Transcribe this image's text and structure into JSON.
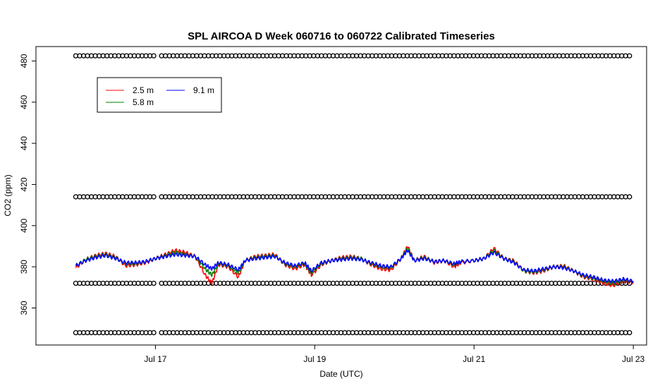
{
  "chart_data": {
    "type": "line",
    "title": "SPL AIRCOA D  Week 060716 to 060722  Calibrated Timeseries",
    "xlabel": "Date (UTC)",
    "ylabel": "CO2 (ppm)",
    "xlim": [
      "2006-07-15 12:00",
      "2006-07-23 04:00"
    ],
    "ylim": [
      342,
      487
    ],
    "x_ticks": [
      {
        "date": "2006-07-17",
        "label": "Jul 17"
      },
      {
        "date": "2006-07-19",
        "label": "Jul 19"
      },
      {
        "date": "2006-07-21",
        "label": "Jul 21"
      },
      {
        "date": "2006-07-23",
        "label": "Jul 23"
      }
    ],
    "y_ticks": [
      360,
      380,
      400,
      420,
      440,
      460,
      480
    ],
    "grid": false,
    "legend": {
      "placement": "top-left",
      "entries": [
        {
          "label": "2.5 m",
          "color": "#ff0000"
        },
        {
          "label": "5.8 m",
          "color": "#008000"
        },
        {
          "label": "9.1 m",
          "color": "#0000ff"
        }
      ]
    },
    "series": [
      {
        "name": "2.5 m",
        "color": "#ff0000",
        "points": [
          [
            "2006-07-16 00:00",
            379.5
          ],
          [
            "2006-07-16 03:00",
            383.5
          ],
          [
            "2006-07-16 06:00",
            385.5
          ],
          [
            "2006-07-16 09:00",
            386.5
          ],
          [
            "2006-07-16 12:00",
            385
          ],
          [
            "2006-07-16 15:00",
            380.5
          ],
          [
            "2006-07-16 18:00",
            381
          ],
          [
            "2006-07-16 21:00",
            382
          ],
          [
            "2006-07-17 00:00",
            384
          ],
          [
            "2006-07-17 03:00",
            386
          ],
          [
            "2006-07-17 06:00",
            388
          ],
          [
            "2006-07-17 09:00",
            387
          ],
          [
            "2006-07-17 12:00",
            385
          ],
          [
            "2006-07-17 15:00",
            376
          ],
          [
            "2006-07-17 17:00",
            372
          ],
          [
            "2006-07-17 19:00",
            381
          ],
          [
            "2006-07-17 22:00",
            380
          ],
          [
            "2006-07-18 01:00",
            375
          ],
          [
            "2006-07-18 03:00",
            383
          ],
          [
            "2006-07-18 06:00",
            385
          ],
          [
            "2006-07-18 09:00",
            385.5
          ],
          [
            "2006-07-18 12:00",
            386
          ],
          [
            "2006-07-18 15:00",
            381
          ],
          [
            "2006-07-18 18:00",
            379
          ],
          [
            "2006-07-18 21:00",
            381
          ],
          [
            "2006-07-18 23:00",
            376
          ],
          [
            "2006-07-19 02:00",
            381
          ],
          [
            "2006-07-19 05:00",
            383
          ],
          [
            "2006-07-19 08:00",
            384.5
          ],
          [
            "2006-07-19 11:00",
            385
          ],
          [
            "2006-07-19 14:00",
            384
          ],
          [
            "2006-07-19 17:00",
            381
          ],
          [
            "2006-07-19 20:00",
            379
          ],
          [
            "2006-07-19 23:00",
            378.5
          ],
          [
            "2006-07-20 02:00",
            384
          ],
          [
            "2006-07-20 04:00",
            390
          ],
          [
            "2006-07-20 06:00",
            383
          ],
          [
            "2006-07-20 09:00",
            385
          ],
          [
            "2006-07-20 12:00",
            382
          ],
          [
            "2006-07-20 15:00",
            383
          ],
          [
            "2006-07-20 18:00",
            380
          ],
          [
            "2006-07-20 20:00",
            382
          ],
          [
            "2006-07-21 00:00",
            383
          ],
          [
            "2006-07-21 03:00",
            384
          ],
          [
            "2006-07-21 06:00",
            389
          ],
          [
            "2006-07-21 09:00",
            384
          ],
          [
            "2006-07-21 12:00",
            383
          ],
          [
            "2006-07-21 15:00",
            378
          ],
          [
            "2006-07-21 18:00",
            377
          ],
          [
            "2006-07-21 21:00",
            378
          ],
          [
            "2006-07-22 00:00",
            380
          ],
          [
            "2006-07-22 03:00",
            380.5
          ],
          [
            "2006-07-22 06:00",
            378
          ],
          [
            "2006-07-22 09:00",
            375
          ],
          [
            "2006-07-22 12:00",
            374
          ],
          [
            "2006-07-22 15:00",
            372
          ],
          [
            "2006-07-22 18:00",
            371
          ],
          [
            "2006-07-22 21:00",
            373
          ],
          [
            "2006-07-23 00:00",
            372.5
          ]
        ]
      },
      {
        "name": "5.8 m",
        "color": "#008000",
        "points": [
          [
            "2006-07-16 00:00",
            380.5
          ],
          [
            "2006-07-16 03:00",
            383.5
          ],
          [
            "2006-07-16 06:00",
            385
          ],
          [
            "2006-07-16 09:00",
            386
          ],
          [
            "2006-07-16 12:00",
            384.5
          ],
          [
            "2006-07-16 15:00",
            381.5
          ],
          [
            "2006-07-16 18:00",
            381.5
          ],
          [
            "2006-07-16 21:00",
            382.5
          ],
          [
            "2006-07-17 00:00",
            384
          ],
          [
            "2006-07-17 03:00",
            385.5
          ],
          [
            "2006-07-17 06:00",
            387
          ],
          [
            "2006-07-17 09:00",
            386
          ],
          [
            "2006-07-17 12:00",
            385
          ],
          [
            "2006-07-17 15:00",
            379
          ],
          [
            "2006-07-17 17:00",
            376
          ],
          [
            "2006-07-17 19:00",
            381.5
          ],
          [
            "2006-07-17 22:00",
            380.5
          ],
          [
            "2006-07-18 01:00",
            377
          ],
          [
            "2006-07-18 03:00",
            383
          ],
          [
            "2006-07-18 06:00",
            384.5
          ],
          [
            "2006-07-18 09:00",
            385
          ],
          [
            "2006-07-18 12:00",
            385.5
          ],
          [
            "2006-07-18 15:00",
            381.5
          ],
          [
            "2006-07-18 18:00",
            380
          ],
          [
            "2006-07-18 21:00",
            381.5
          ],
          [
            "2006-07-18 23:00",
            377
          ],
          [
            "2006-07-19 02:00",
            381.5
          ],
          [
            "2006-07-19 05:00",
            383
          ],
          [
            "2006-07-19 08:00",
            384
          ],
          [
            "2006-07-19 11:00",
            384.5
          ],
          [
            "2006-07-19 14:00",
            384
          ],
          [
            "2006-07-19 17:00",
            381.5
          ],
          [
            "2006-07-19 20:00",
            380
          ],
          [
            "2006-07-19 23:00",
            379.5
          ],
          [
            "2006-07-20 02:00",
            384
          ],
          [
            "2006-07-20 04:00",
            389
          ],
          [
            "2006-07-20 06:00",
            383
          ],
          [
            "2006-07-20 09:00",
            384.5
          ],
          [
            "2006-07-20 12:00",
            382.5
          ],
          [
            "2006-07-20 15:00",
            383
          ],
          [
            "2006-07-20 18:00",
            381
          ],
          [
            "2006-07-20 20:00",
            382.5
          ],
          [
            "2006-07-21 00:00",
            383
          ],
          [
            "2006-07-21 03:00",
            384
          ],
          [
            "2006-07-21 06:00",
            388
          ],
          [
            "2006-07-21 09:00",
            384
          ],
          [
            "2006-07-21 12:00",
            382.5
          ],
          [
            "2006-07-21 15:00",
            378
          ],
          [
            "2006-07-21 18:00",
            377.5
          ],
          [
            "2006-07-21 21:00",
            378.5
          ],
          [
            "2006-07-22 00:00",
            380
          ],
          [
            "2006-07-22 03:00",
            380
          ],
          [
            "2006-07-22 06:00",
            378
          ],
          [
            "2006-07-22 09:00",
            375.5
          ],
          [
            "2006-07-22 12:00",
            374.5
          ],
          [
            "2006-07-22 15:00",
            373
          ],
          [
            "2006-07-22 18:00",
            372
          ],
          [
            "2006-07-22 21:00",
            373.5
          ],
          [
            "2006-07-23 00:00",
            373
          ]
        ]
      },
      {
        "name": "9.1 m",
        "color": "#0000ff",
        "points": [
          [
            "2006-07-16 00:00",
            380.5
          ],
          [
            "2006-07-16 03:00",
            383
          ],
          [
            "2006-07-16 06:00",
            384.5
          ],
          [
            "2006-07-16 09:00",
            385.5
          ],
          [
            "2006-07-16 12:00",
            384
          ],
          [
            "2006-07-16 15:00",
            382
          ],
          [
            "2006-07-16 18:00",
            382
          ],
          [
            "2006-07-16 21:00",
            382.5
          ],
          [
            "2006-07-17 00:00",
            384
          ],
          [
            "2006-07-17 03:00",
            385
          ],
          [
            "2006-07-17 06:00",
            386
          ],
          [
            "2006-07-17 09:00",
            385.5
          ],
          [
            "2006-07-17 12:00",
            385
          ],
          [
            "2006-07-17 15:00",
            381
          ],
          [
            "2006-07-17 17:00",
            379
          ],
          [
            "2006-07-17 19:00",
            382
          ],
          [
            "2006-07-17 22:00",
            381
          ],
          [
            "2006-07-18 01:00",
            378.5
          ],
          [
            "2006-07-18 03:00",
            383
          ],
          [
            "2006-07-18 06:00",
            384
          ],
          [
            "2006-07-18 09:00",
            384.5
          ],
          [
            "2006-07-18 12:00",
            385
          ],
          [
            "2006-07-18 15:00",
            382
          ],
          [
            "2006-07-18 18:00",
            380.5
          ],
          [
            "2006-07-18 21:00",
            382
          ],
          [
            "2006-07-18 23:00",
            378
          ],
          [
            "2006-07-19 02:00",
            382
          ],
          [
            "2006-07-19 05:00",
            383
          ],
          [
            "2006-07-19 08:00",
            383.5
          ],
          [
            "2006-07-19 11:00",
            384
          ],
          [
            "2006-07-19 14:00",
            383.5
          ],
          [
            "2006-07-19 17:00",
            382
          ],
          [
            "2006-07-19 20:00",
            380.5
          ],
          [
            "2006-07-19 23:00",
            380
          ],
          [
            "2006-07-20 02:00",
            384
          ],
          [
            "2006-07-20 04:00",
            388
          ],
          [
            "2006-07-20 06:00",
            383
          ],
          [
            "2006-07-20 09:00",
            384
          ],
          [
            "2006-07-20 12:00",
            382.5
          ],
          [
            "2006-07-20 15:00",
            383
          ],
          [
            "2006-07-20 18:00",
            381.5
          ],
          [
            "2006-07-20 20:00",
            382.5
          ],
          [
            "2006-07-21 00:00",
            383
          ],
          [
            "2006-07-21 03:00",
            384
          ],
          [
            "2006-07-21 06:00",
            387
          ],
          [
            "2006-07-21 09:00",
            384
          ],
          [
            "2006-07-21 12:00",
            382
          ],
          [
            "2006-07-21 15:00",
            378.5
          ],
          [
            "2006-07-21 18:00",
            378
          ],
          [
            "2006-07-21 21:00",
            379
          ],
          [
            "2006-07-22 00:00",
            380
          ],
          [
            "2006-07-22 03:00",
            379.5
          ],
          [
            "2006-07-22 06:00",
            378
          ],
          [
            "2006-07-22 09:00",
            376
          ],
          [
            "2006-07-22 12:00",
            375
          ],
          [
            "2006-07-22 15:00",
            373.5
          ],
          [
            "2006-07-22 18:00",
            373
          ],
          [
            "2006-07-22 21:00",
            374
          ],
          [
            "2006-07-23 00:00",
            373
          ]
        ]
      }
    ],
    "marker_rows": [
      {
        "y": 482.5,
        "start": "2006-07-16 00:00",
        "end": "2006-07-23 00:00",
        "gap_start": "2006-07-16 23:45",
        "gap_end": "2006-07-17 01:00",
        "marker": "o",
        "color": "#000000"
      },
      {
        "y": 414,
        "start": "2006-07-16 00:00",
        "end": "2006-07-23 00:00",
        "gap_start": "2006-07-16 23:45",
        "gap_end": "2006-07-17 01:00",
        "marker": "o",
        "color": "#000000"
      },
      {
        "y": 372,
        "start": "2006-07-16 00:00",
        "end": "2006-07-23 00:00",
        "gap_start": "2006-07-16 23:45",
        "gap_end": "2006-07-17 01:00",
        "marker": "o",
        "color": "#000000"
      },
      {
        "y": 348,
        "start": "2006-07-16 00:00",
        "end": "2006-07-23 00:00",
        "gap_start": "2006-07-16 23:45",
        "gap_end": "2006-07-17 01:00",
        "marker": "o",
        "color": "#000000"
      }
    ]
  }
}
